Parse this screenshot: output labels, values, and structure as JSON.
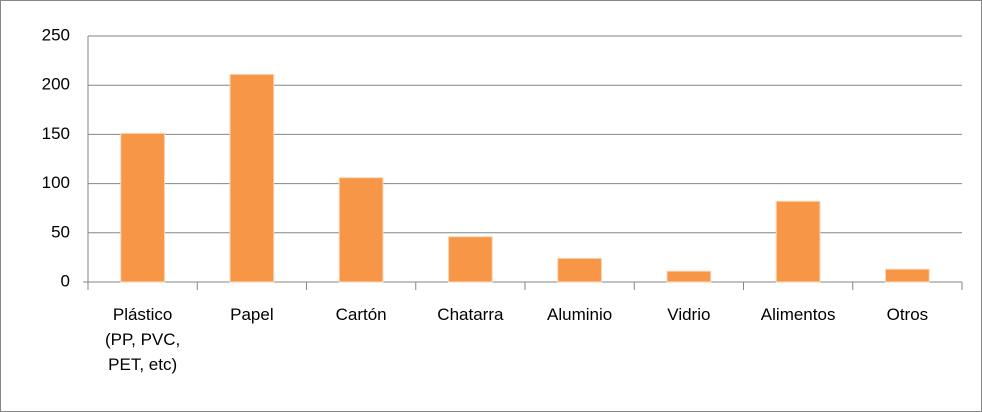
{
  "chart_data": {
    "type": "bar",
    "categories": [
      "Plástico (PP, PVC, PET, etc)",
      "Papel",
      "Cartón",
      "Chatarra",
      "Aluminio",
      "Vidrio",
      "Alimentos",
      "Otros"
    ],
    "values": [
      151,
      211,
      106,
      46,
      24,
      11,
      82,
      13
    ],
    "color": "#f79646",
    "ylim": [
      0,
      250
    ],
    "yticks": [
      0,
      50,
      100,
      150,
      200,
      250
    ],
    "grid": true
  }
}
